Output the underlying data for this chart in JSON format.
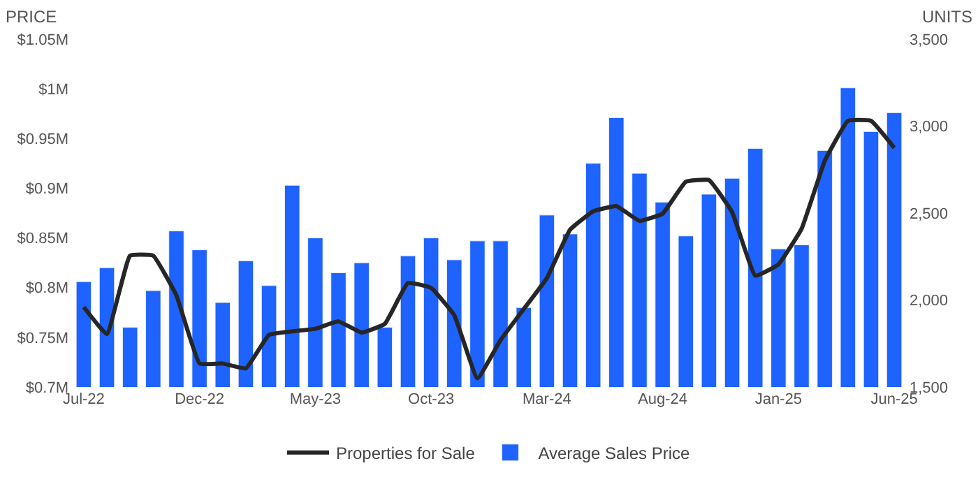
{
  "chart_data": {
    "type": "bar",
    "ylabel": "PRICE",
    "y2label": "UNITS",
    "categories": [
      "Jul-22",
      null,
      null,
      null,
      null,
      "Dec-22",
      null,
      null,
      null,
      null,
      "May-23",
      null,
      null,
      null,
      null,
      "Oct-23",
      null,
      null,
      null,
      null,
      "Mar-24",
      null,
      null,
      null,
      null,
      "Aug-24",
      null,
      null,
      null,
      null,
      "Jan-25",
      null,
      null,
      null,
      null,
      "Jun-25"
    ],
    "series": [
      {
        "name": "Properties for Sale",
        "type": "line",
        "axis": "y2",
        "color": "#262626",
        "values": [
          1960,
          1805,
          2255,
          2255,
          2027,
          1635,
          1635,
          1607,
          1800,
          1820,
          1835,
          1877,
          1813,
          1863,
          2098,
          2070,
          1913,
          1550,
          1770,
          1948,
          2126,
          2404,
          2510,
          2540,
          2455,
          2497,
          2680,
          2690,
          2505,
          2140,
          2205,
          2410,
          2800,
          3030,
          3030,
          2875
        ]
      },
      {
        "name": "Average Sales Price",
        "color": "#1f63ff",
        "values": [
          0.806,
          0.82,
          0.76,
          0.797,
          0.857,
          0.838,
          0.785,
          0.827,
          0.802,
          0.903,
          0.85,
          0.815,
          0.825,
          0.76,
          0.832,
          0.85,
          0.828,
          0.847,
          0.847,
          0.78,
          0.873,
          0.854,
          0.925,
          0.971,
          0.915,
          0.886,
          0.852,
          0.894,
          0.91,
          0.94,
          0.839,
          0.843,
          0.938,
          1.001,
          0.957,
          0.976
        ]
      }
    ],
    "ylim": [
      0.7,
      1.05
    ],
    "yticks": [
      {
        "value": 0.7,
        "label": "$0.7M"
      },
      {
        "value": 0.75,
        "label": "$0.75M"
      },
      {
        "value": 0.8,
        "label": "$0.8M"
      },
      {
        "value": 0.85,
        "label": "$0.85M"
      },
      {
        "value": 0.9,
        "label": "$0.9M"
      },
      {
        "value": 0.95,
        "label": "$0.95M"
      },
      {
        "value": 1.0,
        "label": "$1M"
      },
      {
        "value": 1.05,
        "label": "$1.05M"
      }
    ],
    "y2lim": [
      1500,
      3500
    ],
    "y2ticks": [
      {
        "value": 1500,
        "label": "1,500"
      },
      {
        "value": 2000,
        "label": "2,000"
      },
      {
        "value": 2500,
        "label": "2,500"
      },
      {
        "value": 3000,
        "label": "3,000"
      },
      {
        "value": 3500,
        "label": "3,500"
      }
    ],
    "legend": "bottom",
    "marker": "none",
    "line_style": "solid"
  }
}
